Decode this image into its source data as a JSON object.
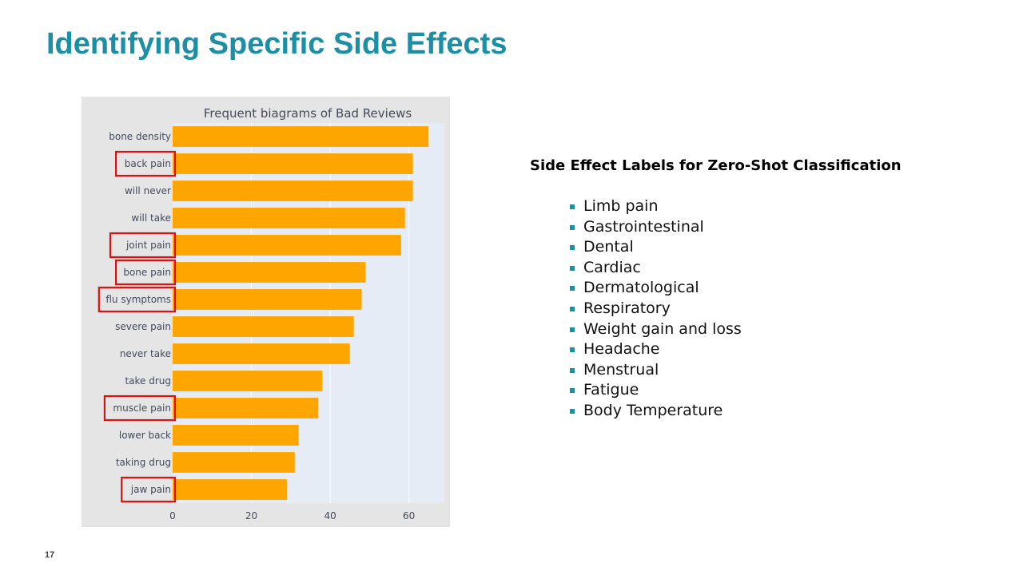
{
  "slide": {
    "title": "Identifying Specific Side Effects",
    "page_number": "17"
  },
  "chart_data": {
    "type": "bar",
    "orientation": "horizontal",
    "title": "Frequent biagrams of Bad Reviews",
    "categories": [
      "bone density",
      "back pain",
      "will never",
      "will take",
      "joint pain",
      "bone pain",
      "flu symptoms",
      "severe pain",
      "never take",
      "take drug",
      "muscle pain",
      "lower back",
      "taking drug",
      "jaw pain"
    ],
    "values": [
      65,
      61,
      61,
      59,
      58,
      49,
      48,
      46,
      45,
      38,
      37,
      32,
      31,
      29
    ],
    "highlighted": [
      "back pain",
      "joint pain",
      "bone pain",
      "flu symptoms",
      "muscle pain",
      "jaw pain"
    ],
    "x_ticks": [
      "0",
      "20",
      "40",
      "60"
    ],
    "xlim": [
      0,
      69
    ],
    "bar_color": "#ffa500",
    "highlight_color": "#e01010",
    "plot_background": "#e5ecf6",
    "paper_background": "#e5e5e5",
    "grid": true,
    "xlabel": "",
    "ylabel": ""
  },
  "side_effects": {
    "heading": "Side Effect Labels for Zero-Shot Classification",
    "items": [
      "Limb pain",
      "Gastrointestinal",
      "Dental",
      "Cardiac",
      "Dermatological",
      "Respiratory",
      "Weight gain and loss",
      "Headache",
      "Menstrual",
      "Fatigue",
      "Body Temperature"
    ],
    "bullet_color": "#1a8fa6"
  }
}
